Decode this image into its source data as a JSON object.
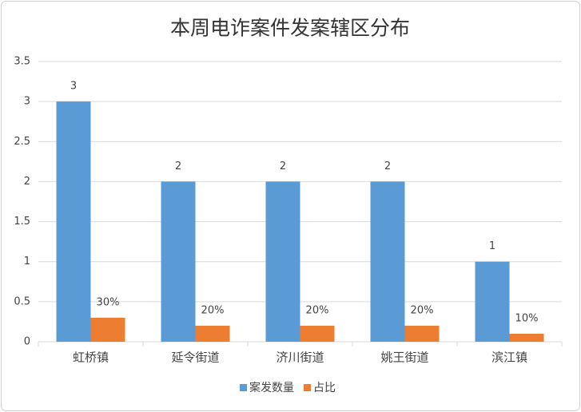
{
  "chart_data": {
    "type": "bar",
    "title": "本周电诈案件发案辖区分布",
    "categories": [
      "虹桥镇",
      "延令街道",
      "济川街道",
      "姚王街道",
      "滨江镇"
    ],
    "series": [
      {
        "name": "案发数量",
        "color": "#5b9bd5",
        "values": [
          3,
          2,
          2,
          2,
          1
        ]
      },
      {
        "name": "占比",
        "color": "#ed7d31",
        "values": [
          0.3,
          0.2,
          0.2,
          0.2,
          0.1
        ],
        "value_labels": [
          "30%",
          "20%",
          "20%",
          "20%",
          "10%"
        ]
      }
    ],
    "ylim": [
      0,
      3.5
    ],
    "yticks": [
      0,
      0.5,
      1,
      1.5,
      2,
      2.5,
      3,
      3.5
    ],
    "grid": true,
    "legend": "bottom"
  }
}
